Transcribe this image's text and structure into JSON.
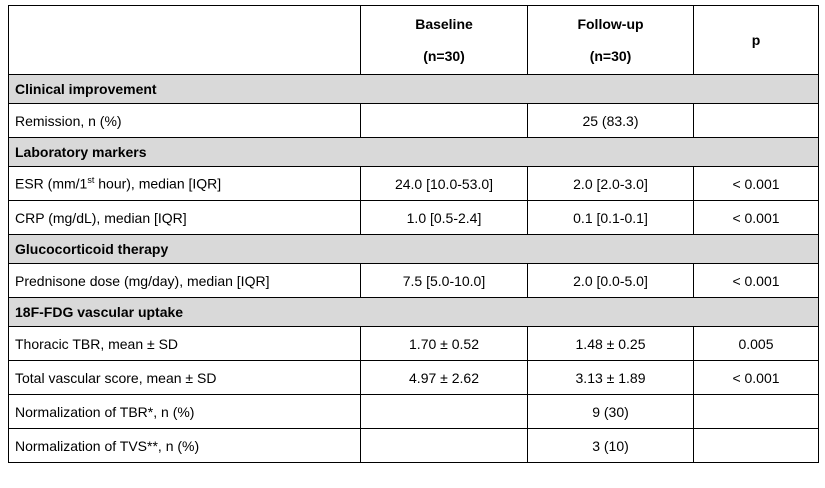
{
  "table": {
    "header": [
      [
        "Baseline",
        "(n=30)"
      ],
      [
        "Follow-up",
        "(n=30)"
      ],
      [
        "p"
      ]
    ],
    "rows": [
      {
        "section": "Clinical improvement"
      },
      {
        "cells": [
          "Remission, n (%)",
          null,
          "25 (83.3)",
          null
        ]
      },
      {
        "section": "Laboratory markers"
      },
      {
        "cells": [
          [
            "ESR (mm/1",
            "st",
            " hour), median [IQR]"
          ],
          "24.0 [10.0-53.0]",
          "2.0 [2.0-3.0]",
          "< 0.001"
        ]
      },
      {
        "cells": [
          "CRP (mg/dL), median [IQR]",
          "1.0 [0.5-2.4]",
          "0.1 [0.1-0.1]",
          "< 0.001"
        ]
      },
      {
        "section": "Glucocorticoid therapy"
      },
      {
        "cells": [
          "Prednisone dose (mg/day), median [IQR]",
          "7.5 [5.0-10.0]",
          "2.0 [0.0-5.0]",
          "< 0.001"
        ]
      },
      {
        "section": "18F-FDG vascular uptake"
      },
      {
        "cells": [
          "Thoracic TBR, mean ± SD",
          "1.70 ± 0.52",
          "1.48 ± 0.25",
          "0.005"
        ]
      },
      {
        "cells": [
          "Total vascular score, mean ± SD",
          "4.97 ± 2.62",
          "3.13 ± 1.89",
          "< 0.001"
        ]
      },
      {
        "cells": [
          "Normalization of TBR*, n (%)",
          null,
          "9 (30)",
          null
        ]
      },
      {
        "cells": [
          "Normalization of TVS**, n (%)",
          null,
          "3 (10)",
          null
        ]
      }
    ]
  }
}
